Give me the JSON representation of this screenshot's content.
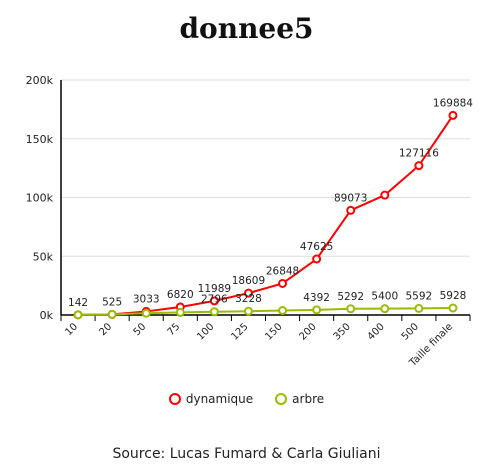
{
  "chart_data": {
    "type": "line",
    "title": "donnee5",
    "categories": [
      "10",
      "20",
      "50",
      "75",
      "100",
      "125",
      "150",
      "200",
      "350",
      "400",
      "500",
      "Taille finale"
    ],
    "series": [
      {
        "name": "dynamique",
        "color": "#ff0000",
        "values": [
          142,
          525,
          3033,
          6820,
          11989,
          18609,
          26848,
          47625,
          89073,
          102000,
          127116,
          169884
        ],
        "labels": [
          "142",
          "525",
          "3033",
          "6820",
          "11989",
          "18609",
          "26848",
          "47625",
          "89073",
          "",
          "127116",
          "169884"
        ]
      },
      {
        "name": "arbre",
        "color": "#99bb00",
        "values": [
          142,
          525,
          1500,
          2200,
          2796,
          3228,
          3800,
          4392,
          5292,
          5400,
          5592,
          5928
        ],
        "labels": [
          "",
          "",
          "",
          "",
          "2796",
          "3228",
          "",
          "4392",
          "5292",
          "5400",
          "5592",
          "5928"
        ]
      }
    ],
    "y_ticks": [
      "0k",
      "50k",
      "100k",
      "150k",
      "200k"
    ],
    "ylim": [
      0,
      200000
    ],
    "grid": true,
    "legend_position": "bottom"
  },
  "source": "Source: Lucas Fumard & Carla Giuliani"
}
